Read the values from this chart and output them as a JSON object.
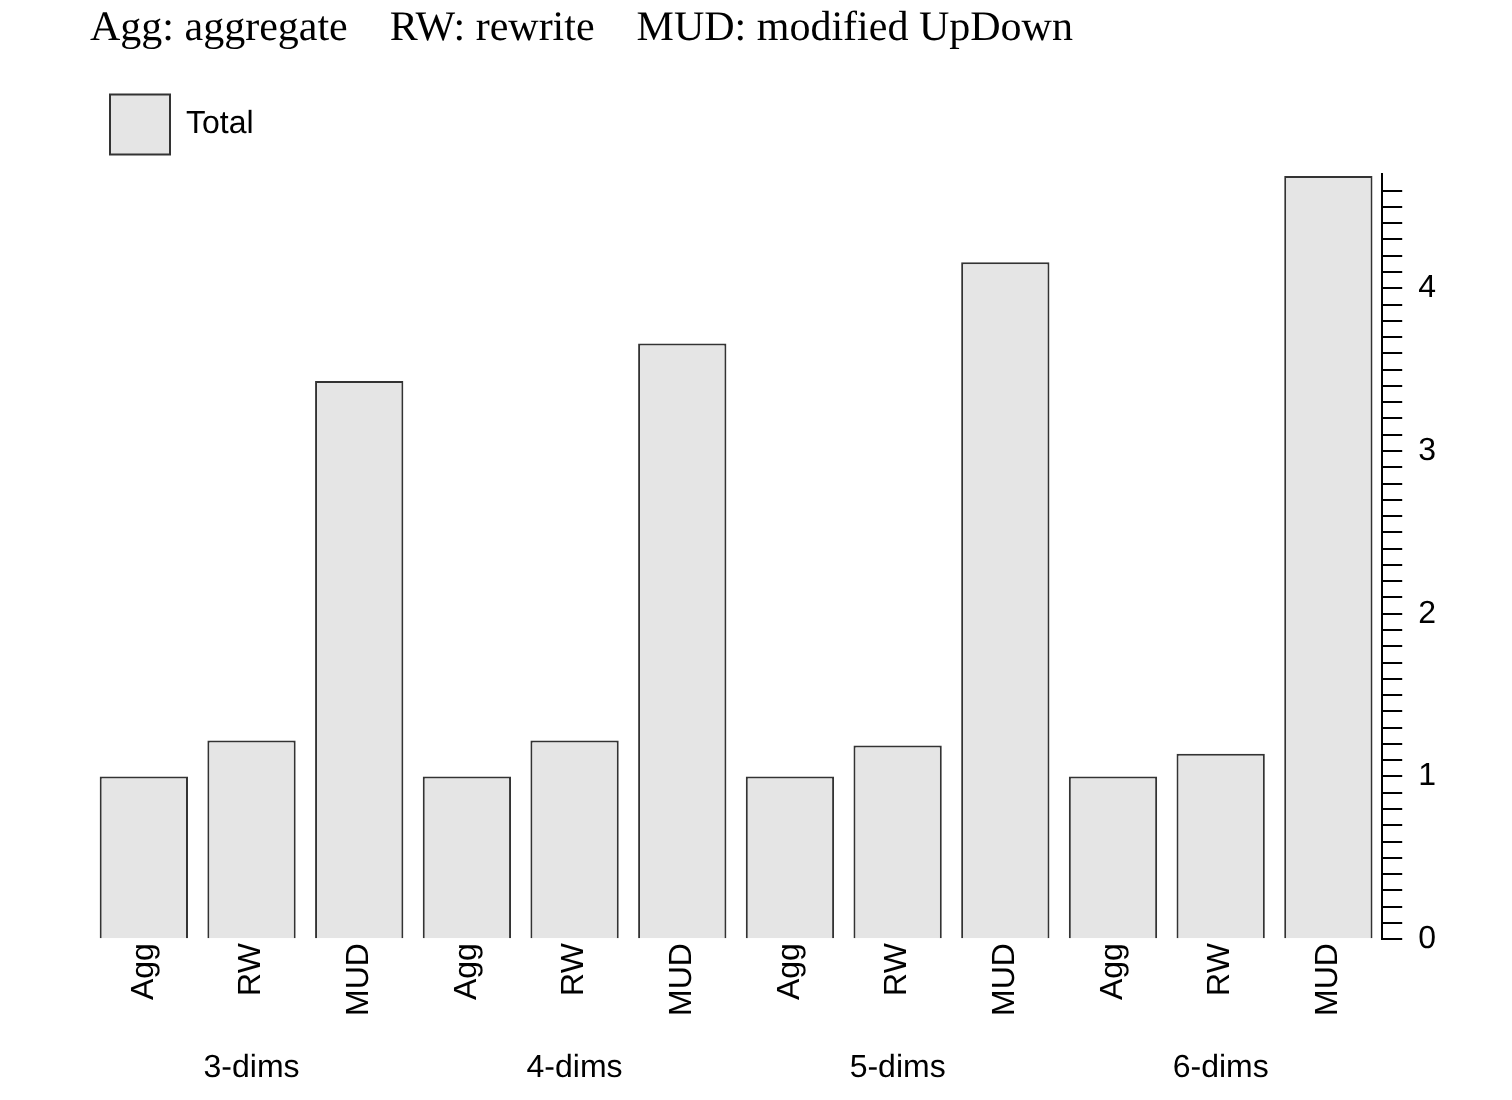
{
  "chart_data": {
    "type": "bar",
    "title": "Agg: aggregate    RW: rewrite    MUD: modified UpDown",
    "categories": [
      "Agg",
      "RW",
      "MUD",
      "Agg",
      "RW",
      "MUD",
      "Agg",
      "RW",
      "MUD",
      "Agg",
      "RW",
      "MUD"
    ],
    "series": [
      {
        "name": "Total",
        "color": "#e5e5e5",
        "values": [
          1.0,
          1.22,
          3.43,
          1.0,
          1.22,
          3.66,
          1.0,
          1.19,
          4.16,
          1.0,
          1.14,
          4.69
        ]
      }
    ],
    "annotations": [
      "3-dims",
      "4-dims",
      "5-dims",
      "6-dims"
    ],
    "ylim": [
      0,
      4.7
    ],
    "yticks": [
      0,
      {
        "value": 0.1,
        "label": null
      },
      {
        "value": 0.2,
        "label": null
      },
      {
        "value": 0.3,
        "label": null
      },
      {
        "value": 0.4,
        "label": null
      },
      {
        "value": 0.5,
        "label": null
      },
      {
        "value": 0.6,
        "label": null
      },
      {
        "value": 0.7,
        "label": null
      },
      {
        "value": 0.8,
        "label": null
      },
      {
        "value": 0.9,
        "label": null
      },
      1,
      {
        "value": 1.1,
        "label": null
      },
      {
        "value": 1.2,
        "label": null
      },
      {
        "value": 1.3,
        "label": null
      },
      {
        "value": 1.4,
        "label": null
      },
      {
        "value": 1.5,
        "label": null
      },
      {
        "value": 1.6,
        "label": null
      },
      {
        "value": 1.7,
        "label": null
      },
      {
        "value": 1.8,
        "label": null
      },
      {
        "value": 1.9,
        "label": null
      },
      2,
      {
        "value": 2.1,
        "label": null
      },
      {
        "value": 2.2,
        "label": null
      },
      {
        "value": 2.3,
        "label": null
      },
      {
        "value": 2.4,
        "label": null
      },
      {
        "value": 2.5,
        "label": null
      },
      {
        "value": 2.6,
        "label": null
      },
      {
        "value": 2.7,
        "label": null
      },
      {
        "value": 2.8,
        "label": null
      },
      {
        "value": 2.9,
        "label": null
      },
      3,
      {
        "value": 3.1,
        "label": null
      },
      {
        "value": 3.2,
        "label": null
      },
      {
        "value": 3.3,
        "label": null
      },
      {
        "value": 3.4,
        "label": null
      },
      {
        "value": 3.5,
        "label": null
      },
      {
        "value": 3.6,
        "label": null
      },
      {
        "value": 3.7,
        "label": null
      },
      {
        "value": 3.8,
        "label": null
      },
      {
        "value": 3.9,
        "label": null
      },
      4,
      {
        "value": 4.1,
        "label": null
      },
      {
        "value": 4.2,
        "label": null
      },
      {
        "value": 4.3,
        "label": null
      },
      {
        "value": 4.4,
        "label": null
      },
      {
        "value": 4.5,
        "label": null
      },
      {
        "value": 4.6,
        "label": null
      }
    ],
    "legend": "top left",
    "grid": false
  }
}
